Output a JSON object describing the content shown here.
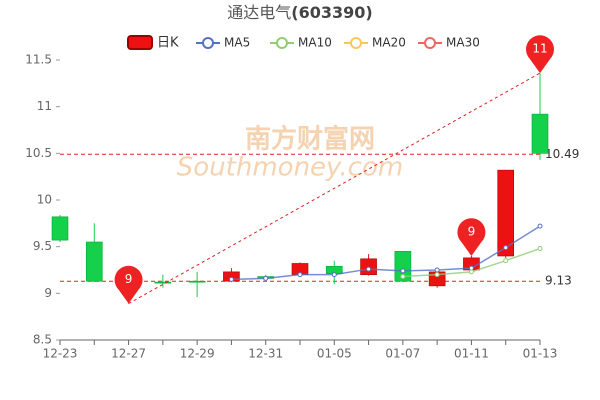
{
  "chart_data": {
    "type": "candlestick",
    "title": "通达电气",
    "code": "(603390)",
    "watermark": "南方财富网",
    "watermark_sub": "Southmoney.com",
    "categories": [
      "12-23",
      null,
      "12-27",
      null,
      "12-29",
      null,
      "12-31",
      null,
      "01-05",
      null,
      "01-07",
      null,
      "01-11",
      null,
      "01-13"
    ],
    "candles": {
      "name": "日K",
      "up_color": "#ee1111",
      "down_color": "#14d04a",
      "open": [
        9.82,
        9.55,
        9.13,
        9.12,
        9.13,
        9.13,
        9.18,
        9.2,
        9.29,
        9.2,
        9.45,
        9.08,
        9.25,
        9.4,
        10.92
      ],
      "close": [
        9.57,
        9.13,
        9.12,
        9.11,
        9.12,
        9.23,
        9.16,
        9.32,
        9.21,
        9.37,
        9.13,
        9.23,
        9.38,
        10.32,
        10.5
      ],
      "high": [
        9.84,
        9.75,
        9.15,
        9.2,
        9.23,
        9.27,
        9.2,
        9.33,
        9.35,
        9.42,
        9.45,
        9.24,
        9.4,
        10.32,
        11.36
      ],
      "low": [
        9.55,
        9.12,
        8.89,
        9.06,
        8.96,
        9.12,
        9.14,
        9.19,
        9.1,
        9.19,
        9.12,
        9.06,
        9.24,
        9.38,
        10.43
      ]
    },
    "series": [
      {
        "name": "MA5",
        "color": "#5470c6",
        "values": [
          null,
          null,
          null,
          null,
          null,
          9.15,
          9.16,
          9.2,
          9.2,
          9.26,
          9.24,
          9.25,
          9.27,
          9.49,
          9.72
        ]
      },
      {
        "name": "MA10",
        "color": "#91cc75",
        "values": [
          null,
          null,
          null,
          null,
          null,
          null,
          null,
          null,
          null,
          null,
          9.18,
          9.2,
          9.23,
          9.35,
          9.48
        ]
      },
      {
        "name": "MA20",
        "color": "#fac858",
        "values": [
          null,
          null,
          null,
          null,
          null,
          null,
          null,
          null,
          null,
          null,
          null,
          null,
          null,
          null,
          null
        ]
      },
      {
        "name": "MA30",
        "color": "#ee6666",
        "values": [
          null,
          null,
          null,
          null,
          null,
          null,
          null,
          null,
          null,
          null,
          null,
          null,
          null,
          null,
          null
        ]
      }
    ],
    "markers": [
      {
        "index": 2,
        "value": 8.89,
        "label": "9"
      },
      {
        "index": 12,
        "value": 9.4,
        "label": "9"
      },
      {
        "index": 14,
        "value": 11.36,
        "label": "11"
      }
    ],
    "mark_lines": [
      10.49,
      9.13
    ],
    "ylim": [
      8.5,
      11.5
    ],
    "yticks": [
      8.5,
      9,
      9.5,
      10,
      10.5,
      11,
      11.5
    ]
  }
}
